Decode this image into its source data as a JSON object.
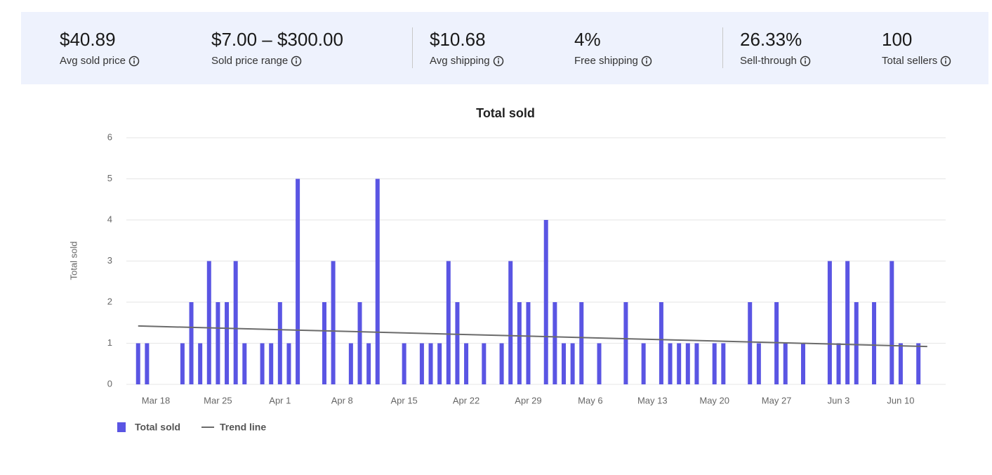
{
  "stats": [
    {
      "value": "$40.89",
      "label": "Avg sold price"
    },
    {
      "value": "$7.00 – $300.00",
      "label": "Sold price range"
    },
    {
      "value": "$10.68",
      "label": "Avg shipping"
    },
    {
      "value": "4%",
      "label": "Free shipping"
    },
    {
      "value": "26.33%",
      "label": "Sell-through"
    },
    {
      "value": "100",
      "label": "Total sellers"
    }
  ],
  "chart_data": {
    "type": "bar",
    "title": "Total sold",
    "y_label": "Total sold",
    "categories": [
      null,
      null,
      null,
      "Mar 18",
      null,
      null,
      null,
      null,
      null,
      null,
      "Mar 25",
      null,
      null,
      null,
      null,
      null,
      null,
      "Apr 1",
      null,
      null,
      null,
      null,
      null,
      null,
      "Apr 8",
      null,
      null,
      null,
      null,
      null,
      null,
      "Apr 15",
      null,
      null,
      null,
      null,
      null,
      null,
      "Apr 22",
      null,
      null,
      null,
      null,
      null,
      null,
      "Apr 29",
      null,
      null,
      null,
      null,
      null,
      null,
      "May 6",
      null,
      null,
      null,
      null,
      null,
      null,
      "May 13",
      null,
      null,
      null,
      null,
      null,
      null,
      "May 20",
      null,
      null,
      null,
      null,
      null,
      null,
      "May 27",
      null,
      null,
      null,
      null,
      null,
      null,
      "Jun 3",
      null,
      null,
      null,
      null,
      null,
      null,
      "Jun 10",
      null,
      null,
      null,
      null
    ],
    "series": [
      {
        "name": "Total sold",
        "color": "#5a55e3",
        "values": [
          0,
          1,
          1,
          0,
          0,
          0,
          1,
          2,
          1,
          3,
          2,
          2,
          3,
          1,
          0,
          1,
          1,
          2,
          1,
          5,
          0,
          0,
          2,
          3,
          0,
          1,
          2,
          1,
          5,
          0,
          0,
          1,
          0,
          1,
          1,
          1,
          3,
          2,
          1,
          0,
          1,
          0,
          1,
          3,
          2,
          2,
          0,
          4,
          2,
          1,
          1,
          2,
          0,
          1,
          0,
          0,
          2,
          0,
          1,
          0,
          2,
          1,
          1,
          1,
          1,
          0,
          1,
          1,
          0,
          0,
          2,
          1,
          0,
          2,
          1,
          0,
          1,
          0,
          0,
          3,
          1,
          3,
          2,
          0,
          2,
          0,
          3,
          1,
          0,
          1,
          0,
          0
        ]
      }
    ],
    "trend": {
      "name": "Trend line",
      "color": "#6b6b6b",
      "values": [
        1.42,
        0.92
      ]
    },
    "ylim": [
      0,
      6
    ],
    "yticks": [
      0,
      1,
      2,
      3,
      4,
      5,
      6
    ],
    "grid": true
  }
}
